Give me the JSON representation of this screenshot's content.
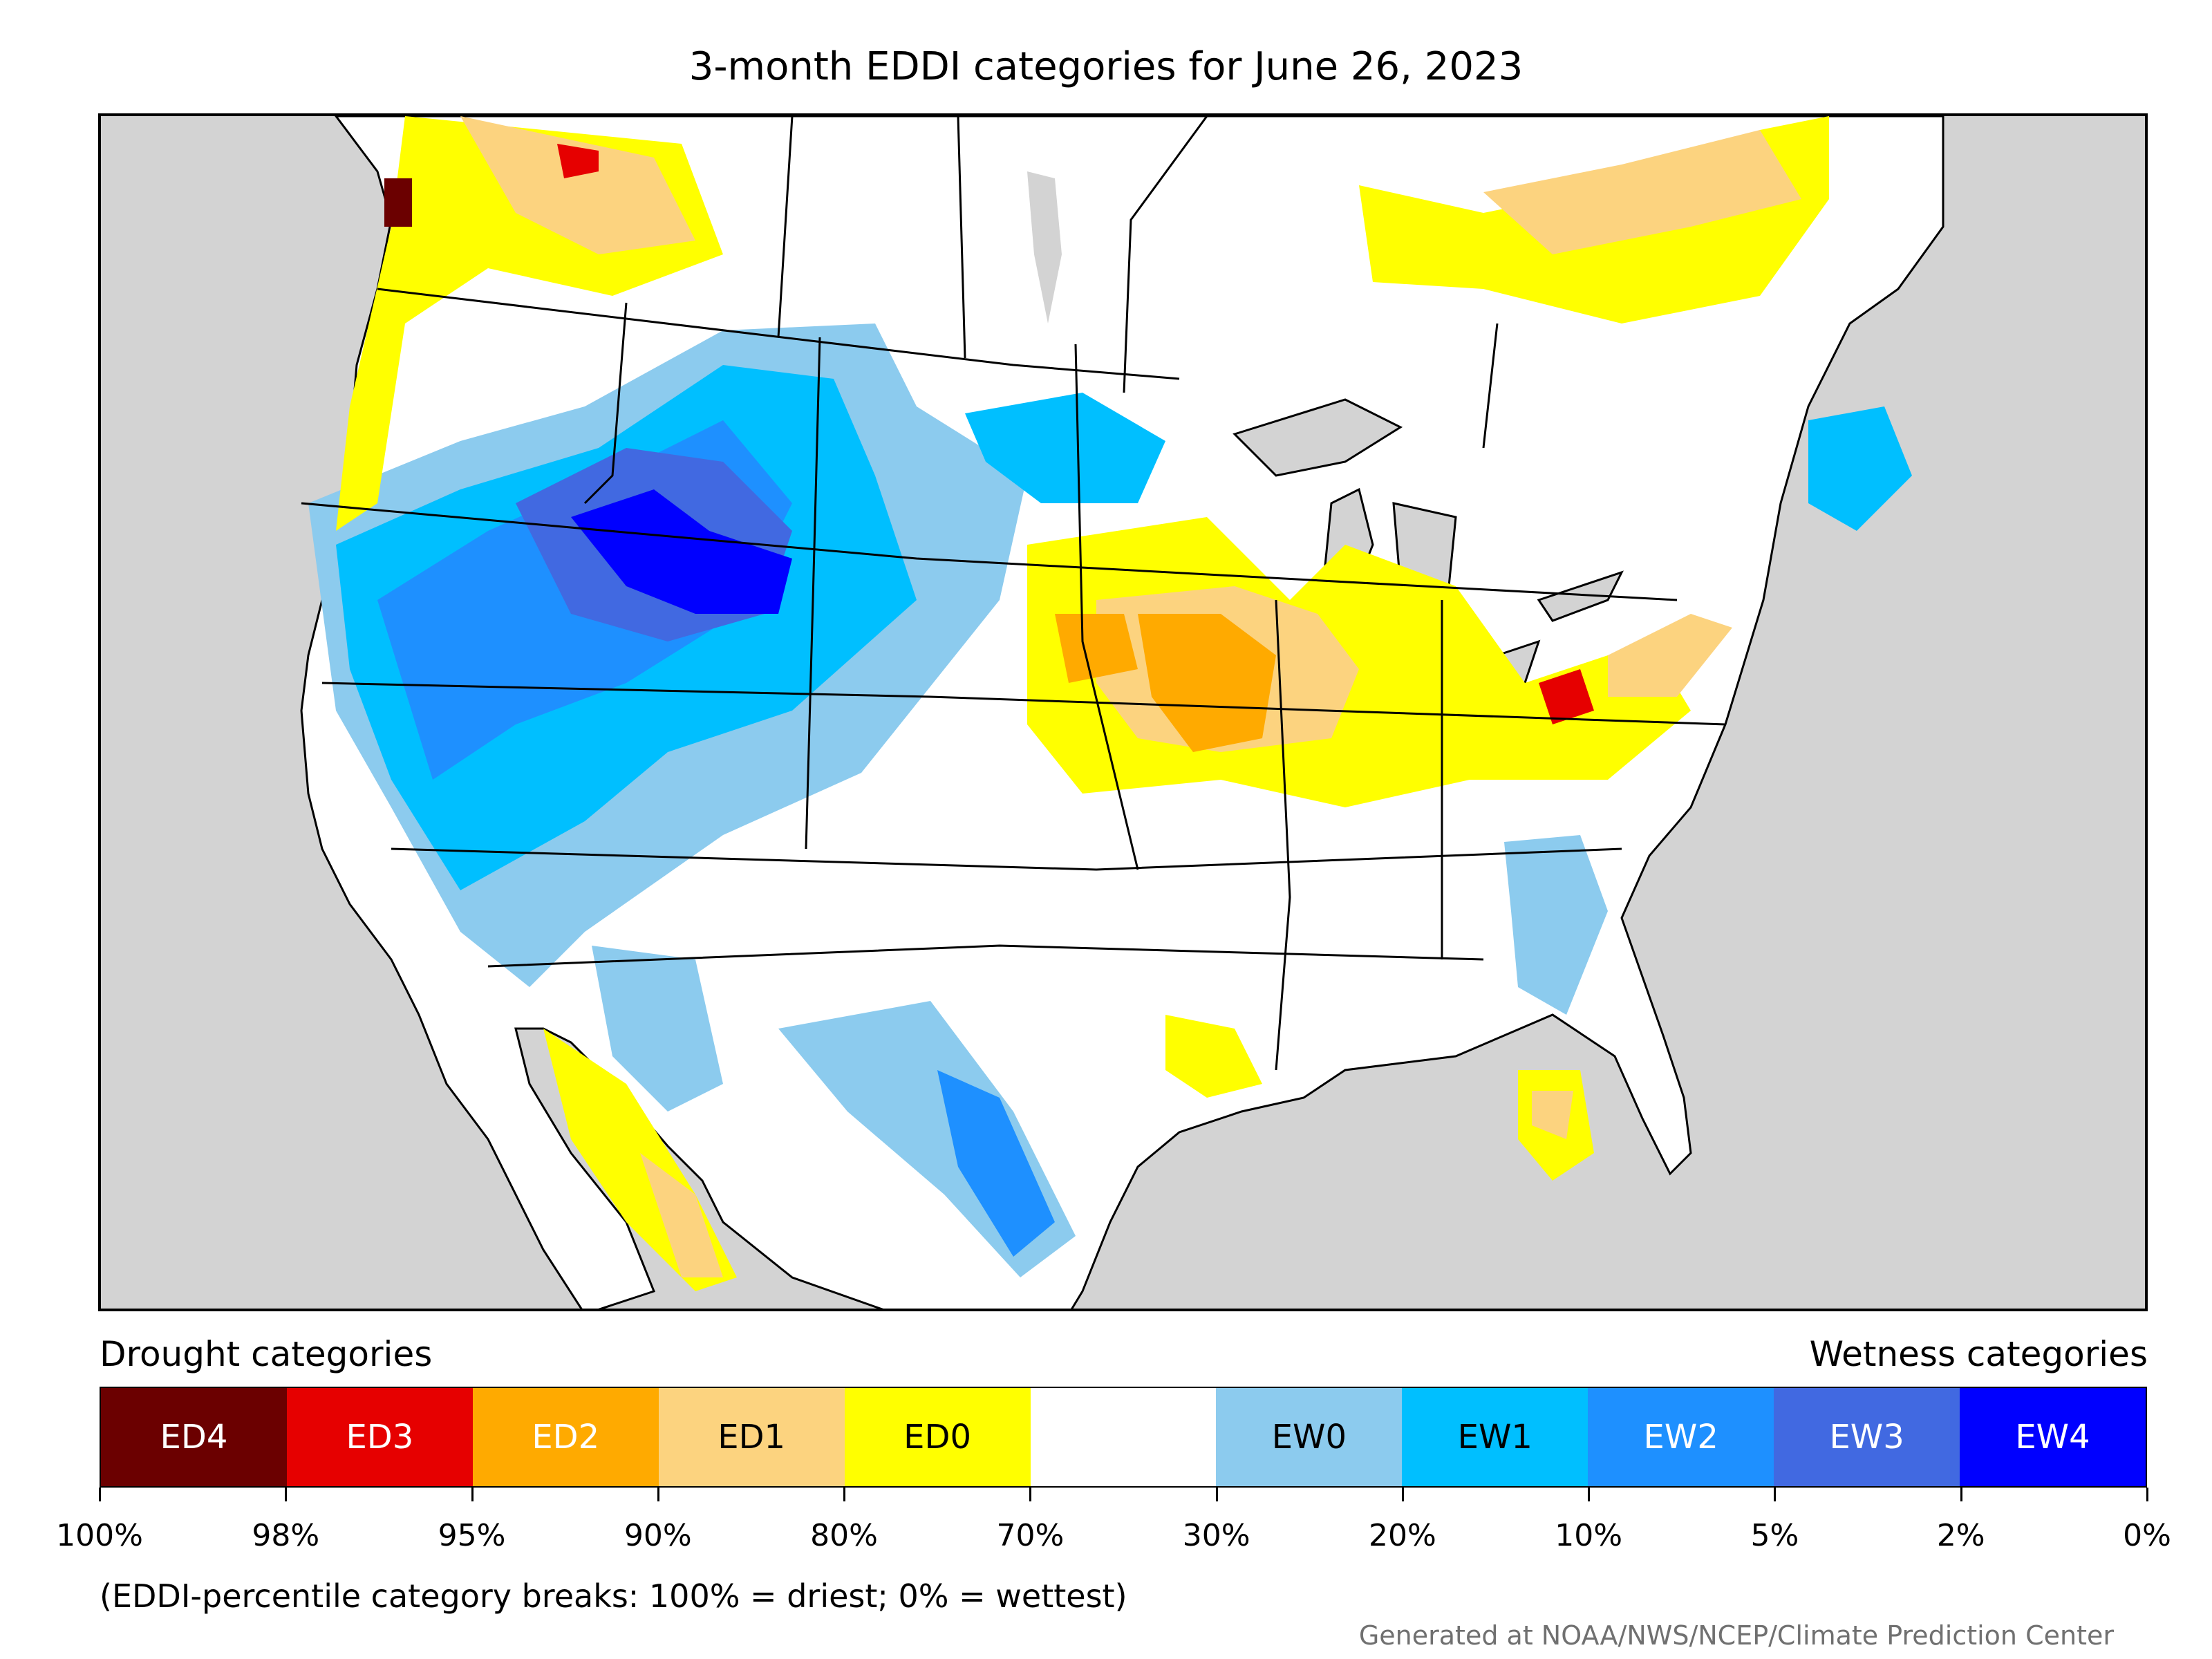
{
  "title": "3-month EDDI categories for June 26, 2023",
  "map": {
    "region": "United States (contiguous) with southern Canada and northern Mexico",
    "category_colors": {
      "ED4": "#6b0000",
      "ED3": "#e60000",
      "ED2": "#ffaa00",
      "ED1": "#fcd37f",
      "ED0": "#ffff00",
      "normal": "#ffffff",
      "EW0": "#8ccbee",
      "EW1": "#00bfff",
      "EW2": "#1e90ff",
      "EW3": "#4169e1",
      "EW4": "#0000ff"
    },
    "background_color": "#d3d3d3"
  },
  "legend": {
    "drought_label": "Drought categories",
    "wetness_label": "Wetness categories",
    "categories": [
      {
        "label": "ED4",
        "color": "#6b0000",
        "text_color": "#ffffff"
      },
      {
        "label": "ED3",
        "color": "#e60000",
        "text_color": "#ffffff"
      },
      {
        "label": "ED2",
        "color": "#ffaa00",
        "text_color": "#ffffff"
      },
      {
        "label": "ED1",
        "color": "#fcd37f",
        "text_color": "#000000"
      },
      {
        "label": "ED0",
        "color": "#ffff00",
        "text_color": "#000000"
      },
      {
        "label": "",
        "color": "#ffffff",
        "text_color": "#000000"
      },
      {
        "label": "EW0",
        "color": "#8ccbee",
        "text_color": "#000000"
      },
      {
        "label": "EW1",
        "color": "#00bfff",
        "text_color": "#000000"
      },
      {
        "label": "EW2",
        "color": "#1e90ff",
        "text_color": "#ffffff"
      },
      {
        "label": "EW3",
        "color": "#4169e1",
        "text_color": "#ffffff"
      },
      {
        "label": "EW4",
        "color": "#0000ff",
        "text_color": "#ffffff"
      }
    ],
    "tick_labels": [
      "100%",
      "98%",
      "95%",
      "90%",
      "80%",
      "70%",
      "30%",
      "20%",
      "10%",
      "5%",
      "2%",
      "0%"
    ]
  },
  "footnote": "(EDDI-percentile category breaks: 100% = driest; 0% = wettest)",
  "credit": "Generated at NOAA/NWS/NCEP/Climate Prediction Center"
}
